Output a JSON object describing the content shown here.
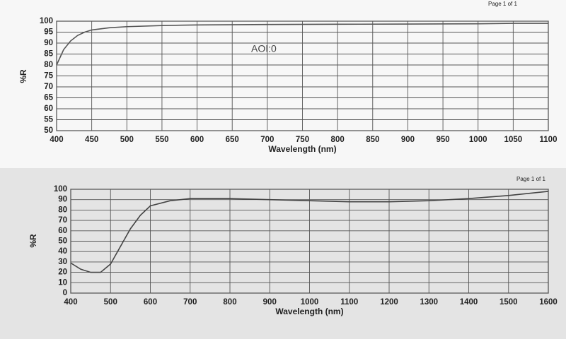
{
  "chart_data": [
    {
      "type": "line",
      "page_label": "Page 1 of 1",
      "annotations": [
        "AOI:0"
      ],
      "x_label": "Wavelength (nm)",
      "y_label": "%R",
      "x": [
        400,
        410,
        420,
        430,
        440,
        450,
        475,
        500,
        550,
        600,
        700,
        800,
        900,
        1000,
        1050,
        1100
      ],
      "values": [
        80,
        87,
        91,
        93.5,
        95,
        96,
        97,
        97.5,
        98,
        98.3,
        98.5,
        98.6,
        98.7,
        98.8,
        99,
        99
      ],
      "color": "#555555",
      "xlim": [
        400,
        1100
      ],
      "xticks": [
        400,
        450,
        500,
        550,
        600,
        650,
        700,
        750,
        800,
        850,
        900,
        950,
        1000,
        1050,
        1100
      ],
      "ylim": [
        50,
        100
      ],
      "yticks": [
        50,
        55,
        60,
        65,
        70,
        75,
        80,
        85,
        90,
        95,
        100
      ],
      "grid": true
    },
    {
      "type": "line",
      "page_label": "Page 1 of 1",
      "annotations": [],
      "x_label": "Wavelength (nm)",
      "y_label": "%R",
      "x": [
        400,
        425,
        450,
        475,
        500,
        525,
        550,
        575,
        600,
        650,
        700,
        800,
        900,
        1000,
        1100,
        1200,
        1300,
        1400,
        1500,
        1600
      ],
      "values": [
        29,
        23,
        20,
        20,
        28,
        45,
        62,
        75,
        84,
        89,
        91,
        91,
        90,
        89,
        88,
        88,
        89,
        91,
        94,
        98
      ],
      "color": "#444444",
      "xlim": [
        400,
        1600
      ],
      "xticks": [
        400,
        500,
        600,
        700,
        800,
        900,
        1000,
        1100,
        1200,
        1300,
        1400,
        1500,
        1600
      ],
      "ylim": [
        0,
        100
      ],
      "yticks": [
        0,
        10,
        20,
        30,
        40,
        50,
        60,
        70,
        80,
        90,
        100
      ],
      "grid": true
    }
  ]
}
